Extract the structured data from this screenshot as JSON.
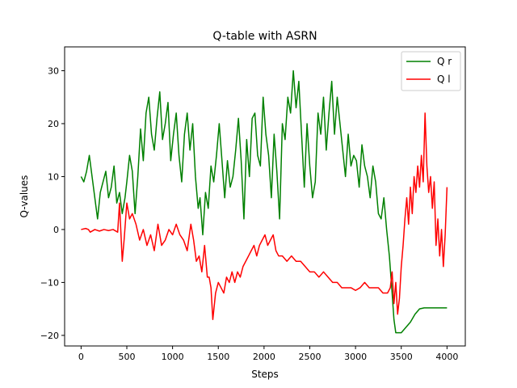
{
  "chart_data": {
    "type": "line",
    "title": "Q-table with ASRN",
    "xlabel": "Steps",
    "ylabel": "Q-values",
    "xlim": [
      -180,
      4200
    ],
    "ylim": [
      -22,
      34.5
    ],
    "xticks": [
      0,
      500,
      1000,
      1500,
      2000,
      2500,
      3000,
      3500,
      4000
    ],
    "yticks": [
      -20,
      -10,
      0,
      10,
      20,
      30
    ],
    "grid": false,
    "legend_position": "top-right",
    "series": [
      {
        "name": "Q r",
        "color": "#008000",
        "x": [
          0,
          30,
          60,
          90,
          120,
          150,
          180,
          210,
          240,
          270,
          300,
          330,
          360,
          390,
          420,
          450,
          480,
          500,
          530,
          560,
          590,
          620,
          650,
          680,
          710,
          740,
          770,
          800,
          830,
          860,
          890,
          920,
          950,
          980,
          1010,
          1040,
          1070,
          1100,
          1130,
          1160,
          1190,
          1220,
          1250,
          1280,
          1300,
          1330,
          1360,
          1390,
          1420,
          1450,
          1480,
          1510,
          1540,
          1570,
          1600,
          1630,
          1660,
          1690,
          1720,
          1750,
          1780,
          1810,
          1840,
          1870,
          1900,
          1930,
          1960,
          1990,
          2020,
          2050,
          2080,
          2110,
          2140,
          2170,
          2200,
          2230,
          2260,
          2290,
          2320,
          2350,
          2380,
          2410,
          2440,
          2470,
          2500,
          2530,
          2560,
          2590,
          2620,
          2650,
          2680,
          2710,
          2740,
          2770,
          2800,
          2830,
          2860,
          2890,
          2920,
          2950,
          2980,
          3010,
          3040,
          3070,
          3100,
          3130,
          3160,
          3190,
          3220,
          3250,
          3280,
          3310,
          3340,
          3370,
          3400,
          3420,
          3440,
          3460,
          3500,
          3600,
          3650,
          3700,
          3750,
          3800,
          4000
        ],
        "y": [
          10,
          9,
          11,
          14,
          10,
          6,
          2,
          7,
          9,
          11,
          6,
          8,
          12,
          5,
          7,
          3,
          6,
          9,
          14,
          11,
          3,
          10,
          19,
          13,
          22,
          25,
          18,
          15,
          21,
          26,
          17,
          20,
          24,
          13,
          18,
          22,
          14,
          9,
          18,
          22,
          15,
          20,
          10,
          4,
          6,
          -1,
          7,
          4,
          12,
          9,
          14,
          20,
          13,
          6,
          13,
          8,
          10,
          15,
          21,
          13,
          2,
          17,
          10,
          21,
          22,
          14,
          12,
          25,
          18,
          14,
          6,
          18,
          11,
          2,
          20,
          17,
          25,
          22,
          30,
          23,
          28,
          18,
          8,
          20,
          12,
          6,
          9,
          22,
          18,
          25,
          15,
          22,
          28,
          18,
          25,
          20,
          15,
          10,
          18,
          12,
          14,
          13,
          8,
          16,
          12,
          10,
          6,
          12,
          9,
          3,
          2,
          6,
          0,
          -5,
          -12,
          -17,
          -19.5,
          -19.5,
          -19.5,
          -17.5,
          -16,
          -15,
          -14.8,
          -14.8,
          -14.8
        ]
      },
      {
        "name": "Q l",
        "color": "#ff0000",
        "x": [
          0,
          50,
          80,
          100,
          150,
          200,
          250,
          300,
          350,
          400,
          420,
          450,
          470,
          500,
          530,
          560,
          600,
          640,
          680,
          720,
          760,
          800,
          840,
          880,
          920,
          960,
          1000,
          1040,
          1080,
          1120,
          1160,
          1200,
          1230,
          1260,
          1290,
          1320,
          1350,
          1380,
          1400,
          1420,
          1440,
          1470,
          1500,
          1530,
          1560,
          1590,
          1620,
          1650,
          1680,
          1710,
          1740,
          1770,
          1800,
          1830,
          1860,
          1890,
          1920,
          1950,
          1980,
          2010,
          2040,
          2070,
          2100,
          2130,
          2160,
          2200,
          2250,
          2300,
          2350,
          2400,
          2450,
          2500,
          2550,
          2600,
          2650,
          2700,
          2750,
          2800,
          2850,
          2900,
          2950,
          3000,
          3050,
          3100,
          3150,
          3200,
          3250,
          3300,
          3350,
          3380,
          3400,
          3420,
          3440,
          3460,
          3480,
          3500,
          3520,
          3540,
          3560,
          3580,
          3600,
          3620,
          3640,
          3660,
          3680,
          3700,
          3720,
          3740,
          3760,
          3780,
          3800,
          3820,
          3840,
          3860,
          3880,
          3900,
          3920,
          3940,
          3960,
          3980,
          4000
        ],
        "y": [
          0,
          0.2,
          0,
          -0.5,
          0,
          -0.3,
          0,
          -0.2,
          0,
          -0.5,
          5,
          -6,
          -2,
          5,
          2,
          3,
          1,
          -2,
          0,
          -3,
          -1,
          -4,
          1,
          -3,
          -2,
          0,
          -1,
          1,
          -1,
          -2,
          -4,
          1,
          -2,
          -6,
          -5,
          -8,
          -3,
          -9,
          -9,
          -11,
          -17,
          -12,
          -10,
          -11,
          -12,
          -9,
          -10,
          -8,
          -10,
          -8,
          -9,
          -7,
          -6,
          -5,
          -4,
          -3,
          -5,
          -3,
          -2,
          -1,
          -3,
          -2,
          -1,
          -4,
          -5,
          -5,
          -6,
          -5,
          -6,
          -6,
          -7,
          -8,
          -8,
          -9,
          -8,
          -9,
          -10,
          -10,
          -11,
          -11,
          -11,
          -11.5,
          -11,
          -10,
          -11,
          -11,
          -11,
          -12,
          -12,
          -11,
          -8,
          -14,
          -10,
          -16,
          -13,
          -7,
          -3,
          2,
          6,
          1,
          8,
          3,
          10,
          7,
          12,
          8,
          14,
          9,
          22,
          12,
          7,
          10,
          4,
          9,
          -3,
          2,
          -5,
          0,
          -7,
          -1,
          8
        ]
      }
    ]
  }
}
